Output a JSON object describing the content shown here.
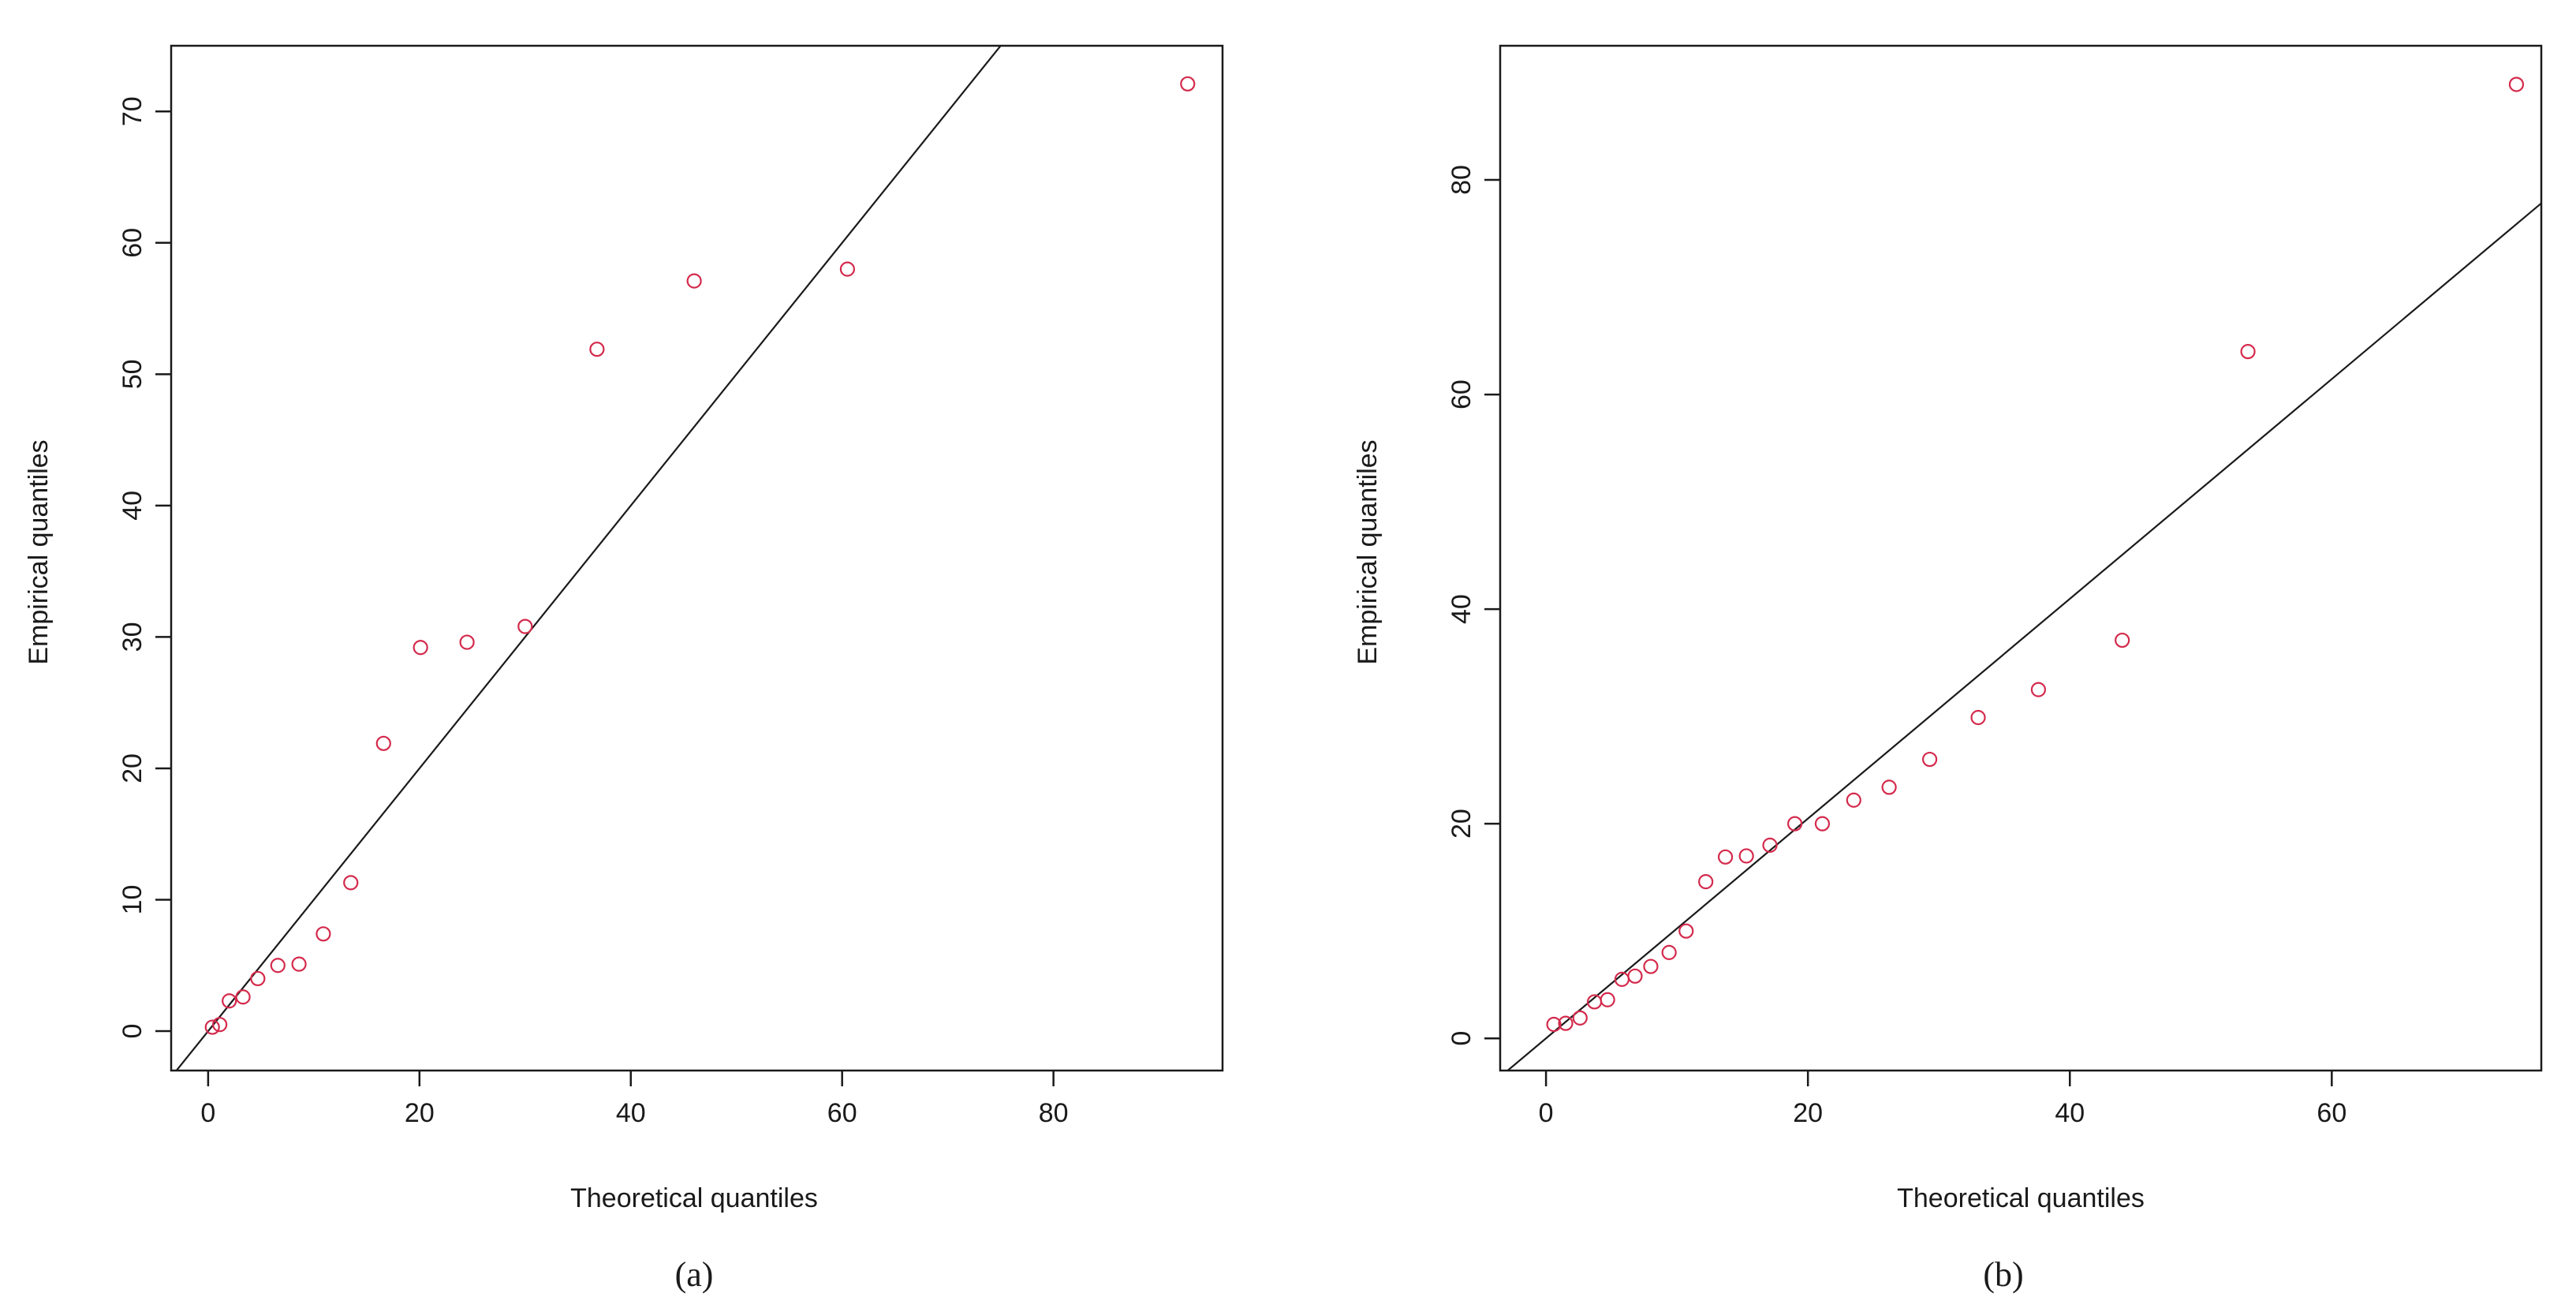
{
  "chart_data": [
    {
      "type": "scatter",
      "panel_label": "(a)",
      "xlabel": "Theoretical quantiles",
      "ylabel": "Empirical quantiles",
      "xlim": [
        -3.5,
        96
      ],
      "ylim": [
        -3,
        75
      ],
      "xticks": [
        0,
        20,
        40,
        60,
        80
      ],
      "yticks": [
        0,
        10,
        20,
        30,
        40,
        50,
        60,
        70
      ],
      "reference_line": {
        "intercept": 0,
        "slope": 1
      },
      "point_color": "#d42a4c",
      "line_color": "#1a1a1a",
      "series": [
        {
          "x": [
            0.4,
            1.1,
            2.0,
            3.3,
            4.7,
            6.6,
            8.6,
            10.9,
            13.5,
            16.6,
            20.1,
            24.5,
            30.0,
            36.8,
            46.0,
            60.5,
            92.7
          ],
          "y": [
            0.3,
            0.5,
            2.3,
            2.6,
            4.0,
            5.0,
            5.1,
            7.4,
            11.3,
            21.9,
            29.2,
            29.6,
            30.8,
            51.9,
            57.1,
            58.0,
            72.1
          ]
        }
      ]
    },
    {
      "type": "scatter",
      "panel_label": "(b)",
      "xlabel": "Theoretical quantiles",
      "ylabel": "Empirical quantiles",
      "xlim": [
        -3.5,
        76
      ],
      "ylim": [
        -3,
        92.5
      ],
      "xticks": [
        0,
        20,
        40,
        60
      ],
      "yticks": [
        0,
        20,
        40,
        60,
        80
      ],
      "reference_line": {
        "intercept": 0,
        "slope": 1.024
      },
      "point_color": "#d42a4c",
      "line_color": "#1a1a1a",
      "series": [
        {
          "x": [
            0.6,
            1.5,
            2.6,
            3.7,
            4.7,
            5.8,
            6.8,
            8.0,
            9.4,
            10.7,
            12.2,
            13.7,
            15.3,
            17.1,
            19.0,
            21.1,
            23.5,
            26.2,
            29.3,
            33.0,
            37.6,
            44.0,
            53.6,
            74.1
          ],
          "y": [
            1.3,
            1.4,
            1.9,
            3.4,
            3.6,
            5.5,
            5.8,
            6.7,
            8.0,
            10.0,
            14.6,
            16.9,
            17.0,
            18.0,
            20.0,
            20.0,
            22.2,
            23.4,
            26.0,
            29.9,
            32.5,
            37.1,
            64.0,
            88.9
          ]
        }
      ]
    }
  ]
}
